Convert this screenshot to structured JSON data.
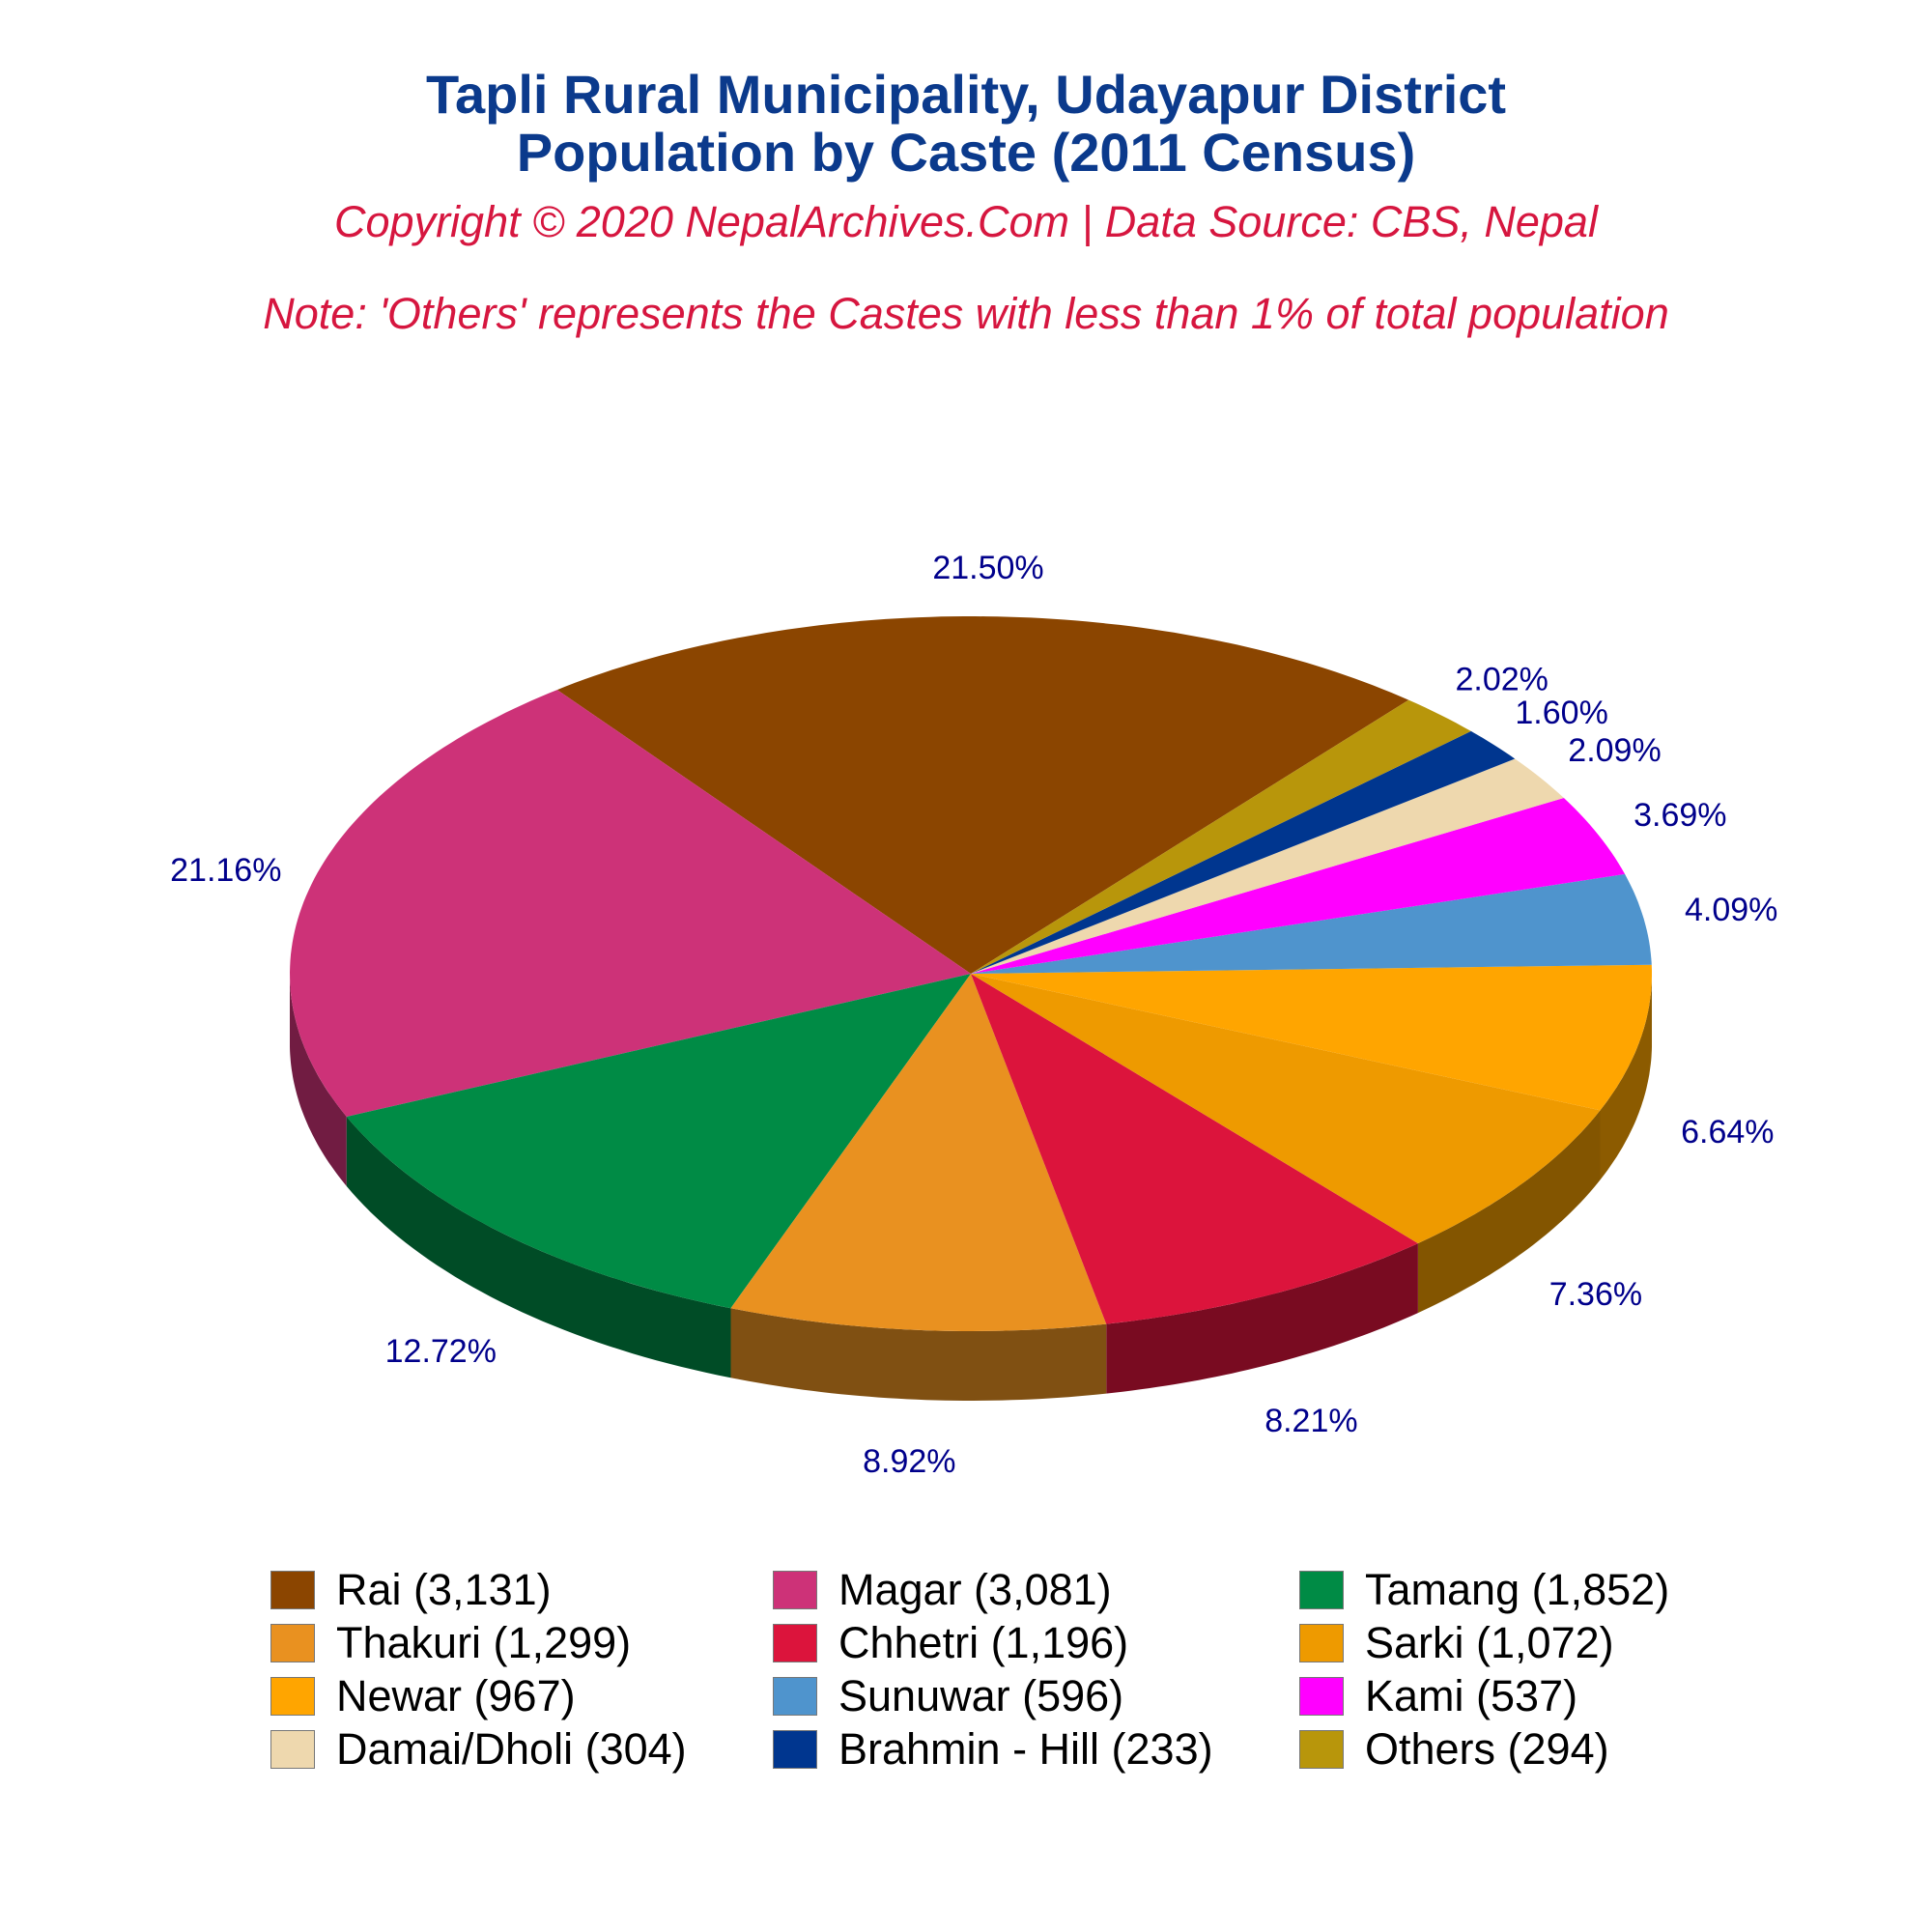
{
  "chart_data": {
    "type": "pie",
    "title": "Tapli Rural Municipality, Udayapur District",
    "subtitle": "Population by Caste (2011 Census)",
    "copyright": "Copyright © 2020 NepalArchives.Com | Data Source: CBS, Nepal",
    "note": "Note: 'Others' represents the Castes with less than 1% of total population",
    "slices": [
      {
        "legend": "Rai (3,131)",
        "value": 3131,
        "pct_label": "21.50%",
        "color": "#8b4500"
      },
      {
        "legend": "Magar (3,081)",
        "value": 3081,
        "pct_label": "21.16%",
        "color": "#cd3278"
      },
      {
        "legend": "Tamang (1,852)",
        "value": 1852,
        "pct_label": "12.72%",
        "color": "#008b45"
      },
      {
        "legend": "Thakuri (1,299)",
        "value": 1299,
        "pct_label": "8.92%",
        "color": "#e99120"
      },
      {
        "legend": "Chhetri (1,196)",
        "value": 1196,
        "pct_label": "8.21%",
        "color": "#dc143c"
      },
      {
        "legend": "Sarki (1,072)",
        "value": 1072,
        "pct_label": "7.36%",
        "color": "#ee9a00"
      },
      {
        "legend": "Newar (967)",
        "value": 967,
        "pct_label": "6.64%",
        "color": "#ffa500"
      },
      {
        "legend": "Sunuwar (596)",
        "value": 596,
        "pct_label": "4.09%",
        "color": "#4f94cd"
      },
      {
        "legend": "Kami (537)",
        "value": 537,
        "pct_label": "3.69%",
        "color": "#ff00ff"
      },
      {
        "legend": "Damai/Dholi (304)",
        "value": 304,
        "pct_label": "2.09%",
        "color": "#eed8ae"
      },
      {
        "legend": "Brahmin - Hill (233)",
        "value": 233,
        "pct_label": "1.60%",
        "color": "#00368f"
      },
      {
        "legend": "Others (294)",
        "value": 294,
        "pct_label": "2.02%",
        "color": "#b8960b"
      }
    ],
    "legend_placement": "bottom"
  }
}
